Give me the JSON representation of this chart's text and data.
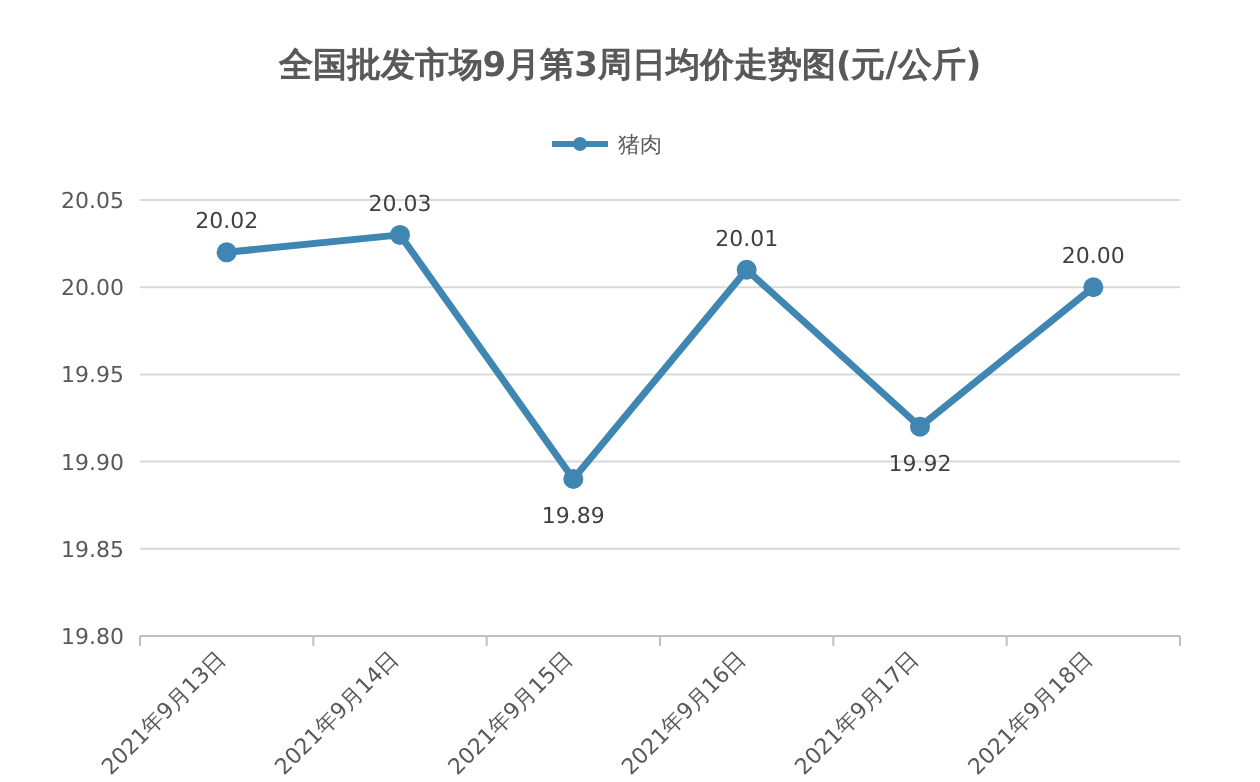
{
  "chart_data": {
    "type": "line",
    "title": "全国批发市场9月第3周日均价走势图(元/公斤)",
    "categories": [
      "2021年9月13日",
      "2021年9月14日",
      "2021年9月15日",
      "2021年9月16日",
      "2021年9月17日",
      "2021年9月18日"
    ],
    "series": [
      {
        "name": "猪肉",
        "color": "#3f87b2",
        "values": [
          20.02,
          20.03,
          19.89,
          20.01,
          19.92,
          20.0
        ],
        "value_labels": [
          "20.02",
          "20.03",
          "19.89",
          "20.01",
          "19.92",
          "20.00"
        ]
      }
    ],
    "ylim": [
      19.8,
      20.05
    ],
    "yticks": [
      {
        "value": 19.8,
        "label": "19.80"
      },
      {
        "value": 19.85,
        "label": "19.85"
      },
      {
        "value": 19.9,
        "label": "19.90"
      },
      {
        "value": 19.95,
        "label": "19.95"
      },
      {
        "value": 20.0,
        "label": "20.00"
      },
      {
        "value": 20.05,
        "label": "20.05"
      }
    ],
    "grid": "y",
    "legend": "top",
    "marker": "circle",
    "line_style": "solid"
  }
}
